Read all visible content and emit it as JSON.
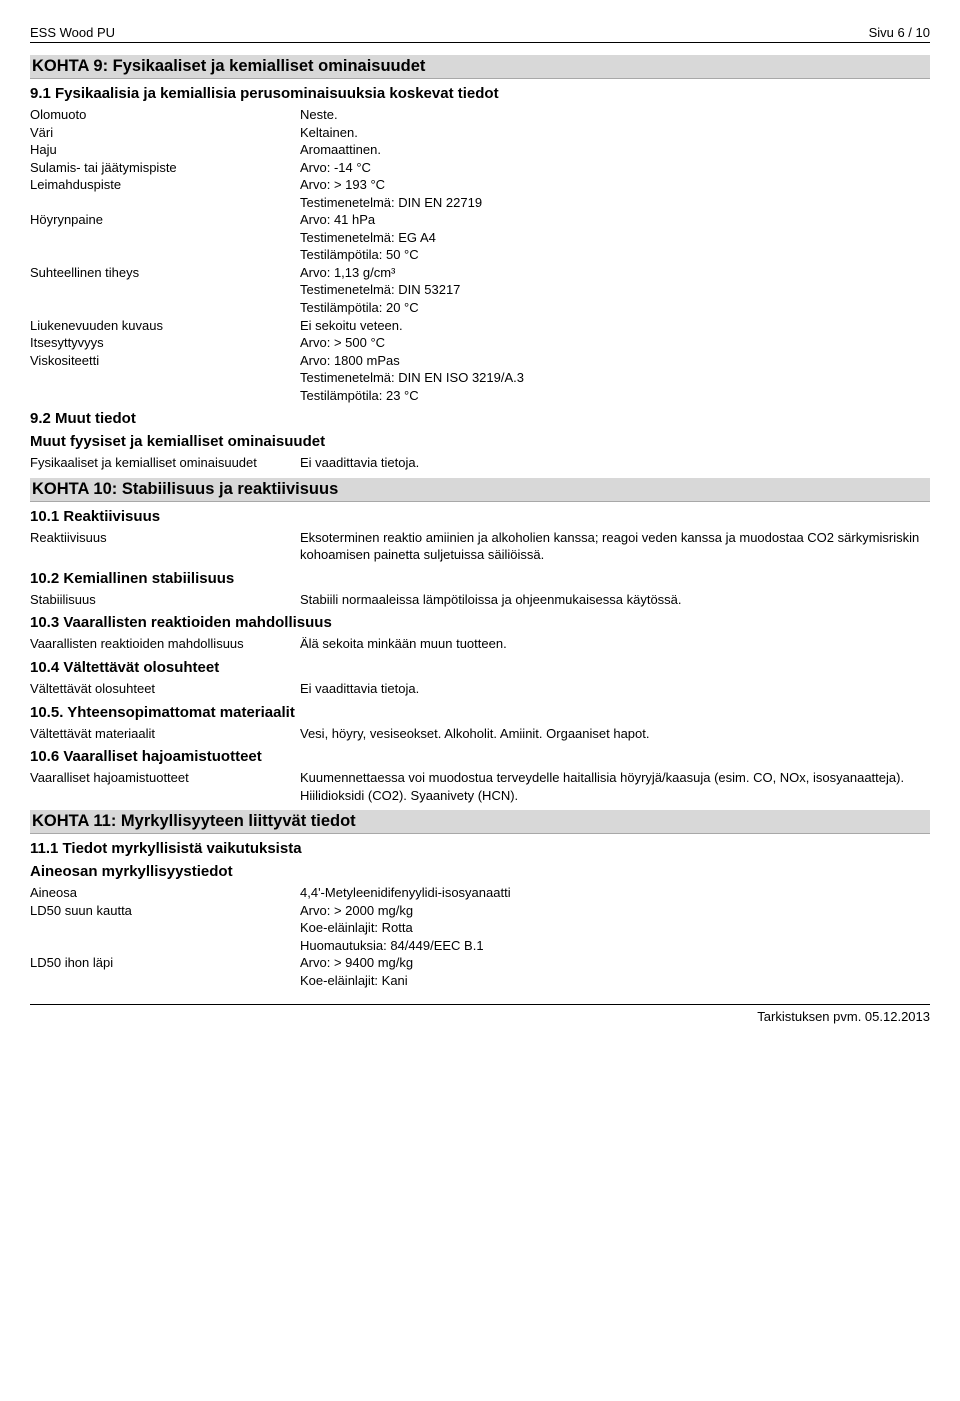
{
  "header": {
    "product": "ESS Wood PU",
    "page_label": "Sivu 6 / 10"
  },
  "section9": {
    "title": "KOHTA 9: Fysikaaliset ja kemialliset ominaisuudet",
    "sub91": "9.1 Fysikaalisia ja kemiallisia perusominaisuuksia koskevat tiedot",
    "props": [
      {
        "label": "Olomuoto",
        "lines": [
          "Neste."
        ]
      },
      {
        "label": "Väri",
        "lines": [
          "Keltainen."
        ]
      },
      {
        "label": "Haju",
        "lines": [
          "Aromaattinen."
        ]
      },
      {
        "label": "Sulamis- tai jäätymispiste",
        "lines": [
          "Arvo: -14 °C"
        ]
      },
      {
        "label": "Leimahduspiste",
        "lines": [
          "Arvo: > 193 °C",
          "Testimenetelmä: DIN EN 22719"
        ]
      },
      {
        "label": "Höyrynpaine",
        "lines": [
          "Arvo: 41 hPa",
          "Testimenetelmä: EG A4",
          "Testilämpötila: 50 °C"
        ]
      },
      {
        "label": "Suhteellinen tiheys",
        "lines": [
          "Arvo: 1,13 g/cm³",
          "Testimenetelmä: DIN 53217",
          "Testilämpötila: 20 °C"
        ]
      },
      {
        "label": "Liukenevuuden kuvaus",
        "lines": [
          "Ei sekoitu veteen."
        ]
      },
      {
        "label": "Itsesyttyvyys",
        "lines": [
          "Arvo: > 500 °C"
        ]
      },
      {
        "label": "Viskositeetti",
        "lines": [
          "Arvo: 1800 mPas",
          "Testimenetelmä: DIN EN ISO 3219/A.3",
          "Testilämpötila: 23 °C"
        ]
      }
    ],
    "sub92": "9.2 Muut tiedot",
    "sub92b": "Muut fyysiset ja kemialliset ominaisuudet",
    "props92": [
      {
        "label": "Fysikaaliset ja kemialliset ominaisuudet",
        "lines": [
          "Ei vaadittavia tietoja."
        ]
      }
    ]
  },
  "section10": {
    "title": "KOHTA 10: Stabiilisuus ja reaktiivisuus",
    "sub101": "10.1 Reaktiivisuus",
    "props101": [
      {
        "label": "Reaktiivisuus",
        "lines": [
          "Eksoterminen reaktio amiinien ja alkoholien kanssa; reagoi veden kanssa ja muodostaa CO2 särkymisriskin kohoamisen painetta suljetuissa säiliöissä."
        ]
      }
    ],
    "sub102": "10.2 Kemiallinen stabiilisuus",
    "props102": [
      {
        "label": "Stabiilisuus",
        "lines": [
          "Stabiili normaaleissa lämpötiloissa ja ohjeenmukaisessa käytössä."
        ]
      }
    ],
    "sub103": "10.3 Vaarallisten reaktioiden mahdollisuus",
    "props103": [
      {
        "label": "Vaarallisten reaktioiden mahdollisuus",
        "lines": [
          "Älä sekoita minkään muun tuotteen."
        ]
      }
    ],
    "sub104": "10.4 Vältettävät olosuhteet",
    "props104": [
      {
        "label": "Vältettävät olosuhteet",
        "lines": [
          "Ei vaadittavia tietoja."
        ]
      }
    ],
    "sub105": "10.5. Yhteensopimattomat materiaalit",
    "props105": [
      {
        "label": "Vältettävät materiaalit",
        "lines": [
          "Vesi, höyry, vesiseokset. Alkoholit. Amiinit. Orgaaniset hapot."
        ]
      }
    ],
    "sub106": "10.6 Vaaralliset hajoamistuotteet",
    "props106": [
      {
        "label": "Vaaralliset hajoamistuotteet",
        "lines": [
          "Kuumennettaessa voi muodostua terveydelle haitallisia höyryjä/kaasuja (esim. CO, NOx, isosyanaatteja). Hiilidioksidi (CO2). Syaanivety (HCN)."
        ]
      }
    ]
  },
  "section11": {
    "title": "KOHTA 11: Myrkyllisyyteen liittyvät tiedot",
    "sub111": "11.1 Tiedot myrkyllisistä vaikutuksista",
    "sub111b": "Aineosan myrkyllisyystiedot",
    "props111": [
      {
        "label": "Aineosa",
        "lines": [
          "4,4'-Metyleenidifenyylidi-isosyanaatti"
        ]
      },
      {
        "label": "LD50 suun kautta",
        "lines": [
          "Arvo: > 2000 mg/kg",
          "Koe-eläinlajit: Rotta",
          "Huomautuksia: 84/449/EEC B.1"
        ]
      },
      {
        "label": "LD50 ihon läpi",
        "lines": [
          "Arvo: > 9400 mg/kg",
          "Koe-eläinlajit: Kani"
        ]
      }
    ]
  },
  "footer": {
    "text": "Tarkistuksen pvm. 05.12.2013"
  }
}
